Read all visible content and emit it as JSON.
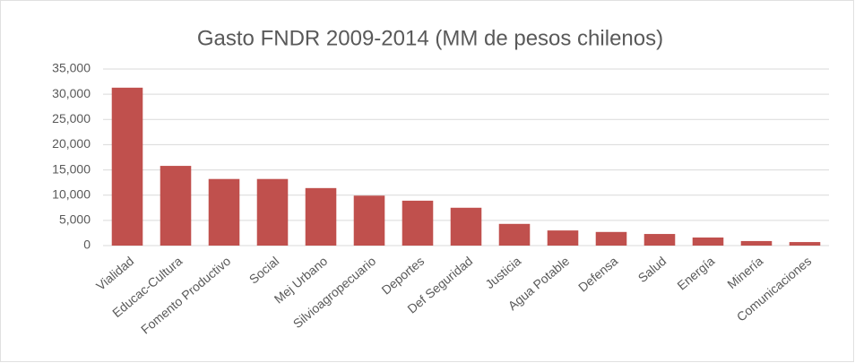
{
  "chart_data": {
    "type": "bar",
    "title": "Gasto FNDR 2009-2014 (MM de pesos chilenos)",
    "categories": [
      "Vialidad",
      "Educac-Cultura",
      "Fomento Productivo",
      "Social",
      "Mej Urbano",
      "Silvioagropecuario",
      "Deportes",
      "Def Seguridad",
      "Justicia",
      "Agua Potable",
      "Defensa",
      "Salud",
      "Energía",
      "Minería",
      "Comunicaciones"
    ],
    "values": [
      31300,
      15800,
      13200,
      13200,
      11400,
      9900,
      8900,
      7500,
      4300,
      3000,
      2700,
      2300,
      1600,
      900,
      700
    ],
    "color": "#c0504d",
    "ylim": [
      0,
      35000
    ],
    "yticks": [
      0,
      {
        "value": 5000,
        "label": "5,000"
      },
      {
        "value": 10000,
        "label": "10,000"
      },
      {
        "value": 15000,
        "label": "15,000"
      },
      {
        "value": 20000,
        "label": "20,000"
      },
      {
        "value": 25000,
        "label": "25,000"
      },
      {
        "value": 30000,
        "label": "30,000"
      },
      {
        "value": 35000,
        "label": "35,000"
      }
    ],
    "grid": true
  }
}
